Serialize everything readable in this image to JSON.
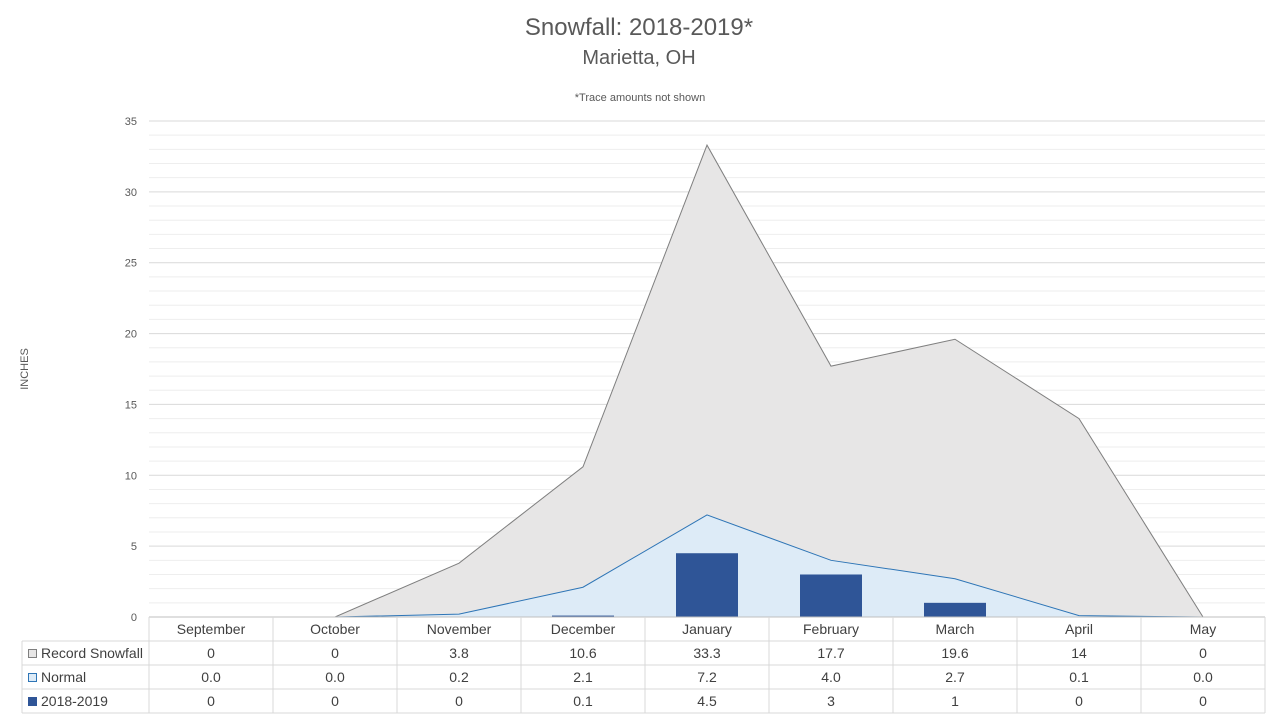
{
  "chart_data": {
    "type": "area",
    "title": "Snowfall: 2018-2019*",
    "subtitle": "Marietta, OH",
    "note": "*Trace amounts not shown",
    "ylabel": "INCHES",
    "ylim": [
      0,
      35
    ],
    "yticks": [
      0,
      5,
      10,
      15,
      20,
      25,
      30,
      35
    ],
    "categories": [
      "September",
      "October",
      "November",
      "December",
      "January",
      "February",
      "March",
      "April",
      "May"
    ],
    "series": [
      {
        "name": "Record Snowfall",
        "kind": "area",
        "color": "#e7e6e6",
        "stroke": "#7f7f7f",
        "values": [
          0,
          0,
          3.8,
          10.6,
          33.3,
          17.7,
          19.6,
          14,
          0
        ],
        "labels": [
          "0",
          "0",
          "3.8",
          "10.6",
          "33.3",
          "17.7",
          "19.6",
          "14",
          "0"
        ]
      },
      {
        "name": "Normal",
        "kind": "area",
        "color": "#ddebf7",
        "stroke": "#2e75b6",
        "values": [
          0.0,
          0.0,
          0.2,
          2.1,
          7.2,
          4.0,
          2.7,
          0.1,
          0.0
        ],
        "labels": [
          "0.0",
          "0.0",
          "0.2",
          "2.1",
          "7.2",
          "4.0",
          "2.7",
          "0.1",
          "0.0"
        ]
      },
      {
        "name": "2018-2019",
        "kind": "bar",
        "color": "#2f5597",
        "values": [
          0,
          0,
          0,
          0.1,
          4.5,
          3,
          1,
          0,
          0
        ],
        "labels": [
          "0",
          "0",
          "0",
          "0.1",
          "4.5",
          "3",
          "1",
          "0",
          "0"
        ]
      }
    ],
    "grid": true,
    "legend": "data-table-left"
  }
}
